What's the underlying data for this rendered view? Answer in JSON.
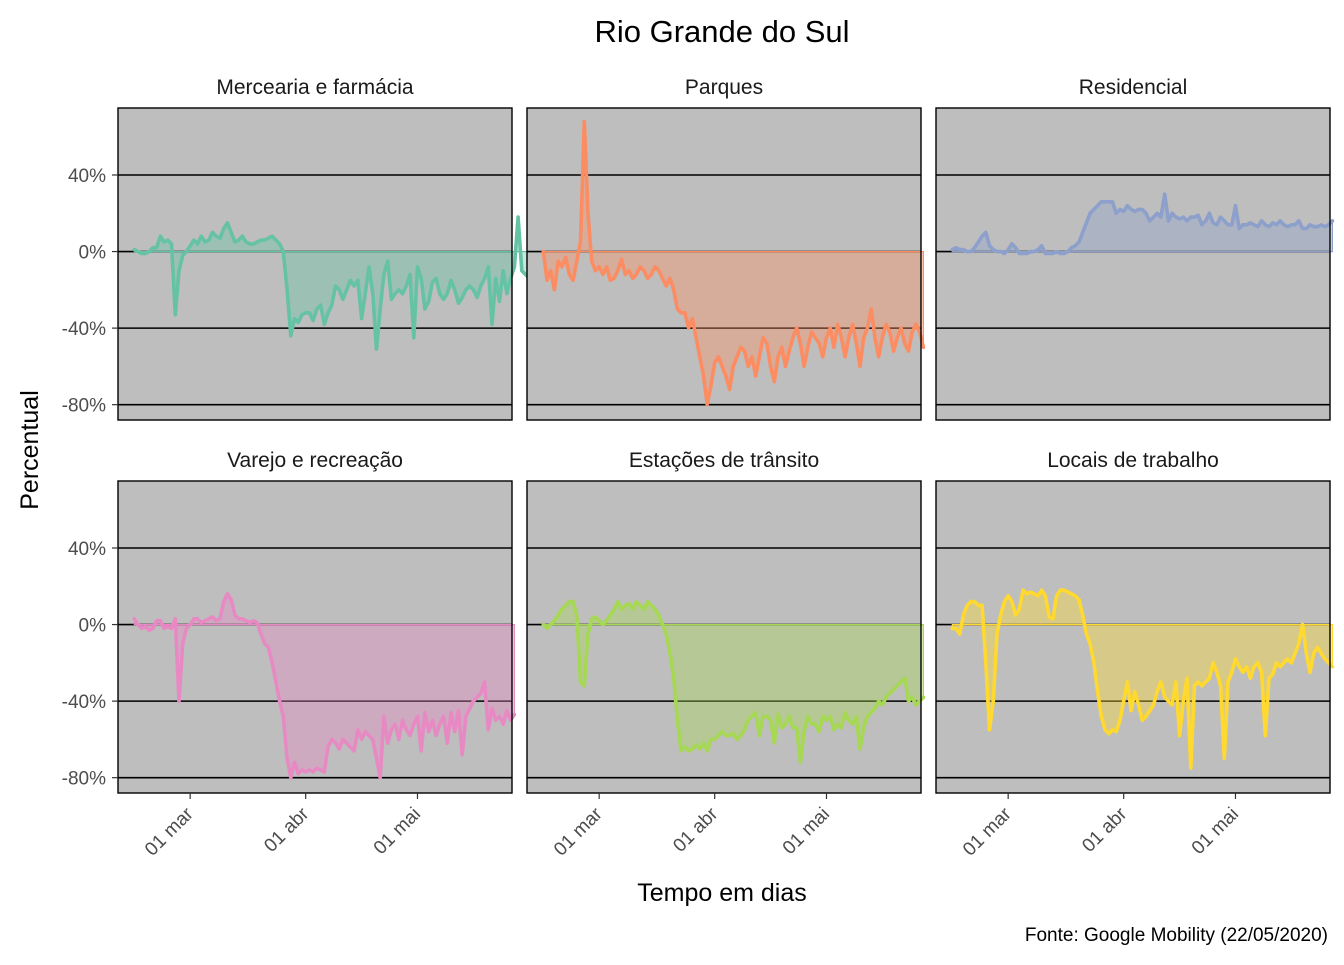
{
  "chart_data": {
    "type": "area",
    "title": "Rio Grande do Sul",
    "xlabel": "Tempo em dias",
    "ylabel": "Percentual",
    "caption": "Fonte: Google Mobility (22/05/2020)",
    "ylim": [
      -88,
      75
    ],
    "yticks": [
      -80,
      -40,
      0,
      40
    ],
    "ytick_labels": [
      "-80%",
      "-40%",
      "0%",
      "40%"
    ],
    "x_range": [
      "2020-02-15",
      "2020-05-22"
    ],
    "xticks": [
      "2020-03-01",
      "2020-04-01",
      "2020-05-01"
    ],
    "xtick_labels": [
      "01 mar",
      "01 abr",
      "01 mai"
    ],
    "layout": "facet grid 2 rows x 3 columns, free x shared y",
    "panel_background": "#bebebe",
    "gridline_color": "#000000",
    "panels": [
      {
        "name": "Mercearia e farmácia",
        "color": "#66c2a5",
        "start": "2020-02-15",
        "values": [
          1,
          0,
          -1,
          -1,
          0,
          2,
          2,
          8,
          5,
          6,
          4,
          -33,
          -10,
          -2,
          0,
          3,
          6,
          4,
          8,
          5,
          6,
          10,
          8,
          7,
          12,
          15,
          10,
          5,
          6,
          8,
          5,
          4,
          4,
          5,
          6,
          6,
          7,
          8,
          6,
          4,
          0,
          -20,
          -44,
          -35,
          -37,
          -33,
          -32,
          -32,
          -36,
          -30,
          -28,
          -38,
          -32,
          -28,
          -18,
          -20,
          -25,
          -20,
          -15,
          -18,
          -15,
          -35,
          -22,
          -8,
          -22,
          -51,
          -30,
          -12,
          -5,
          -25,
          -22,
          -20,
          -22,
          -18,
          -12,
          -45,
          -8,
          -14,
          -30,
          -26,
          -16,
          -14,
          -22,
          -25,
          -22,
          -15,
          -20,
          -27,
          -24,
          -20,
          -18,
          -20,
          -24,
          -18,
          -14,
          -8,
          -38,
          -14,
          -26,
          -10,
          -22,
          -14,
          -8,
          18,
          -10,
          -12,
          -14,
          -10,
          -14,
          -8,
          -12,
          -16,
          -14,
          -18,
          -16,
          -2,
          -16
        ]
      },
      {
        "name": "Parques",
        "color": "#fc8d62",
        "start": "2020-02-15",
        "values": [
          0,
          -15,
          -10,
          -20,
          -5,
          -8,
          -3,
          -12,
          -15,
          -5,
          5,
          68,
          20,
          -5,
          -10,
          -8,
          -12,
          -8,
          -15,
          -14,
          -10,
          -4,
          -12,
          -10,
          -14,
          -12,
          -8,
          -10,
          -14,
          -12,
          -8,
          -10,
          -14,
          -18,
          -14,
          -20,
          -30,
          -32,
          -32,
          -40,
          -35,
          -45,
          -55,
          -65,
          -80,
          -70,
          -58,
          -55,
          -60,
          -65,
          -72,
          -60,
          -55,
          -50,
          -52,
          -60,
          -55,
          -65,
          -55,
          -45,
          -48,
          -60,
          -68,
          -55,
          -50,
          -60,
          -52,
          -45,
          -40,
          -48,
          -60,
          -50,
          -42,
          -45,
          -48,
          -55,
          -45,
          -40,
          -50,
          -38,
          -45,
          -55,
          -45,
          -38,
          -48,
          -60,
          -45,
          -40,
          -30,
          -45,
          -55,
          -45,
          -38,
          -42,
          -52,
          -45,
          -40,
          -48,
          -52,
          -42,
          -38,
          -42,
          -50
        ]
      },
      {
        "name": "Residencial",
        "color": "#8da0cb",
        "start": "2020-02-15",
        "values": [
          1,
          2,
          1,
          1,
          0,
          0,
          2,
          5,
          8,
          10,
          3,
          1,
          0,
          0,
          -1,
          1,
          4,
          2,
          -1,
          -1,
          -1,
          0,
          0,
          1,
          3,
          -1,
          -1,
          -1,
          0,
          -1,
          -1,
          0,
          2,
          3,
          5,
          10,
          15,
          20,
          22,
          24,
          26,
          26,
          26,
          26,
          20,
          22,
          21,
          24,
          22,
          21,
          22,
          22,
          20,
          16,
          18,
          20,
          18,
          30,
          16,
          20,
          18,
          17,
          18,
          16,
          18,
          18,
          19,
          14,
          16,
          20,
          15,
          14,
          18,
          16,
          14,
          14,
          24,
          12,
          14,
          14,
          15,
          14,
          13,
          16,
          14,
          13,
          15,
          14,
          16,
          14,
          13,
          14,
          14,
          16,
          12,
          12,
          14,
          13,
          13,
          14,
          13,
          14,
          16
        ]
      },
      {
        "name": "Varejo e recreação",
        "color": "#e78ac3",
        "start": "2020-02-15",
        "values": [
          3,
          0,
          -2,
          -1,
          -3,
          -2,
          2,
          2,
          -2,
          -1,
          -2,
          3,
          -40,
          -10,
          -2,
          0,
          3,
          3,
          1,
          2,
          3,
          4,
          2,
          3,
          12,
          16,
          13,
          5,
          3,
          3,
          2,
          1,
          2,
          1,
          -5,
          -10,
          -12,
          -20,
          -30,
          -40,
          -48,
          -70,
          -80,
          -72,
          -78,
          -76,
          -77,
          -76,
          -77,
          -75,
          -76,
          -77,
          -64,
          -60,
          -62,
          -65,
          -60,
          -62,
          -64,
          -66,
          -55,
          -60,
          -56,
          -58,
          -60,
          -70,
          -80,
          -48,
          -62,
          -55,
          -52,
          -60,
          -50,
          -55,
          -58,
          -52,
          -48,
          -66,
          -46,
          -56,
          -50,
          -58,
          -52,
          -48,
          -62,
          -46,
          -56,
          -45,
          -68,
          -48,
          -44,
          -40,
          -38,
          -36,
          -30,
          -55,
          -44,
          -50,
          -48,
          -52,
          -45,
          -50,
          -47
        ]
      },
      {
        "name": "Estações de trânsito",
        "color": "#a6d854",
        "start": "2020-02-15",
        "values": [
          0,
          -2,
          0,
          2,
          5,
          8,
          10,
          12,
          12,
          5,
          -30,
          -32,
          -5,
          3,
          4,
          2,
          0,
          2,
          5,
          8,
          12,
          8,
          10,
          11,
          8,
          12,
          10,
          8,
          12,
          10,
          8,
          5,
          0,
          -5,
          -15,
          -28,
          -50,
          -66,
          -64,
          -66,
          -65,
          -63,
          -65,
          -62,
          -66,
          -60,
          -60,
          -58,
          -56,
          -58,
          -58,
          -57,
          -60,
          -58,
          -55,
          -50,
          -48,
          -46,
          -58,
          -48,
          -48,
          -50,
          -62,
          -47,
          -54,
          -52,
          -48,
          -54,
          -54,
          -72,
          -56,
          -48,
          -52,
          -52,
          -56,
          -48,
          -50,
          -48,
          -55,
          -52,
          -54,
          -46,
          -50,
          -52,
          -48,
          -65,
          -54,
          -48,
          -46,
          -44,
          -40,
          -42,
          -38,
          -36,
          -34,
          -32,
          -30,
          -28,
          -40,
          -38,
          -42,
          -40,
          -38
        ]
      },
      {
        "name": "Locais de trabalho",
        "color": "#ffd92f",
        "start": "2020-02-15",
        "values": [
          -2,
          -2,
          -5,
          5,
          10,
          12,
          12,
          10,
          10,
          -20,
          -55,
          -40,
          -5,
          5,
          12,
          15,
          12,
          5,
          8,
          18,
          16,
          17,
          16,
          15,
          18,
          15,
          4,
          3,
          15,
          18,
          18,
          17,
          16,
          15,
          13,
          5,
          -5,
          -10,
          -20,
          -35,
          -48,
          -55,
          -57,
          -55,
          -56,
          -50,
          -40,
          -30,
          -45,
          -35,
          -42,
          -50,
          -48,
          -45,
          -42,
          -35,
          -30,
          -38,
          -40,
          -42,
          -30,
          -58,
          -40,
          -28,
          -75,
          -32,
          -30,
          -32,
          -30,
          -28,
          -20,
          -25,
          -32,
          -70,
          -30,
          -25,
          -18,
          -22,
          -25,
          -22,
          -28,
          -22,
          -20,
          -25,
          -58,
          -28,
          -26,
          -20,
          -22,
          -20,
          -18,
          -20,
          -15,
          -10,
          0,
          -15,
          -25,
          -15,
          -12,
          -15,
          -18,
          -20,
          -22
        ]
      }
    ]
  }
}
